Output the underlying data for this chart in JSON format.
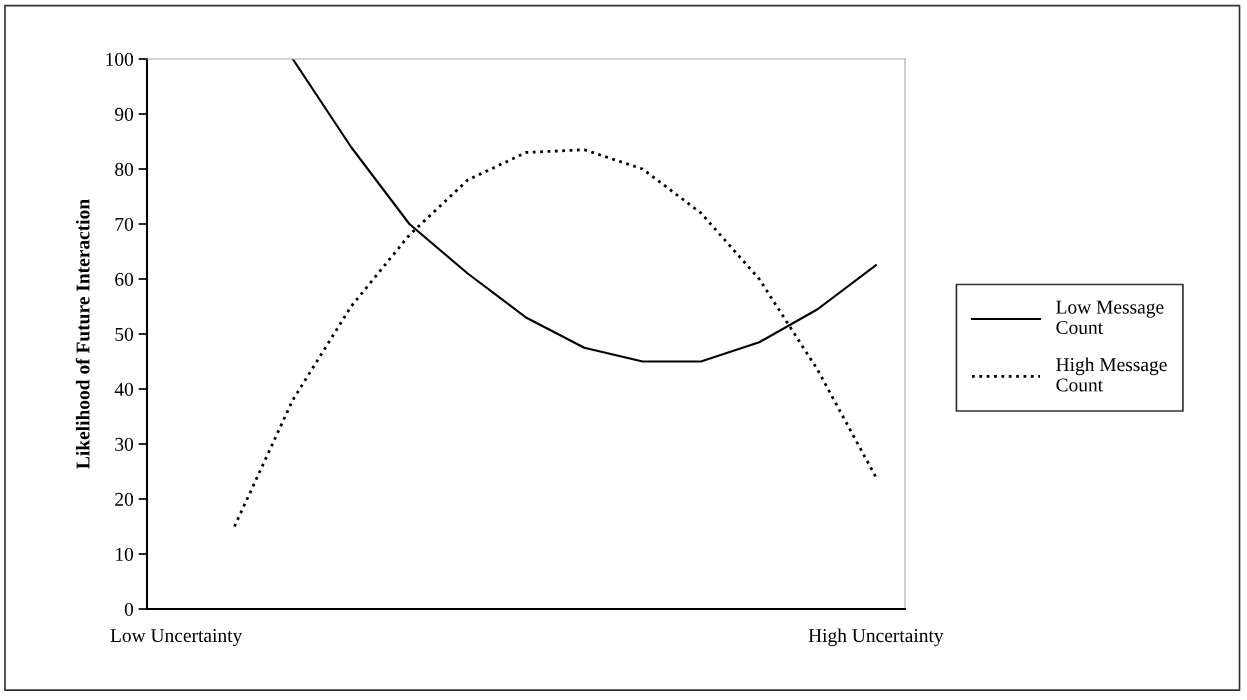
{
  "chart_data": {
    "type": "line",
    "ylabel": "Likelihood of Future Interaction",
    "categories": [
      "Low Uncertainty",
      null,
      null,
      null,
      null,
      null,
      null,
      null,
      null,
      null,
      null,
      null,
      "High Uncertainty"
    ],
    "series": [
      {
        "name": "Low Message Count",
        "color": "#000000",
        "line_style": "solid",
        "values": [
          null,
          null,
          100,
          84,
          70,
          61,
          53,
          47.5,
          45,
          45,
          48.5,
          54.5,
          62.5
        ]
      },
      {
        "name": "High Message Count",
        "color": "#000000",
        "line_style": "dotted",
        "values": [
          null,
          15,
          38,
          55,
          68,
          78,
          83,
          83.5,
          80,
          72,
          60,
          43.5,
          24
        ]
      }
    ],
    "ylim": [
      0,
      100
    ],
    "yticks": [
      0,
      10,
      20,
      30,
      40,
      50,
      60,
      70,
      80,
      90,
      100
    ],
    "grid": false,
    "legend": "right",
    "marker": "none"
  }
}
